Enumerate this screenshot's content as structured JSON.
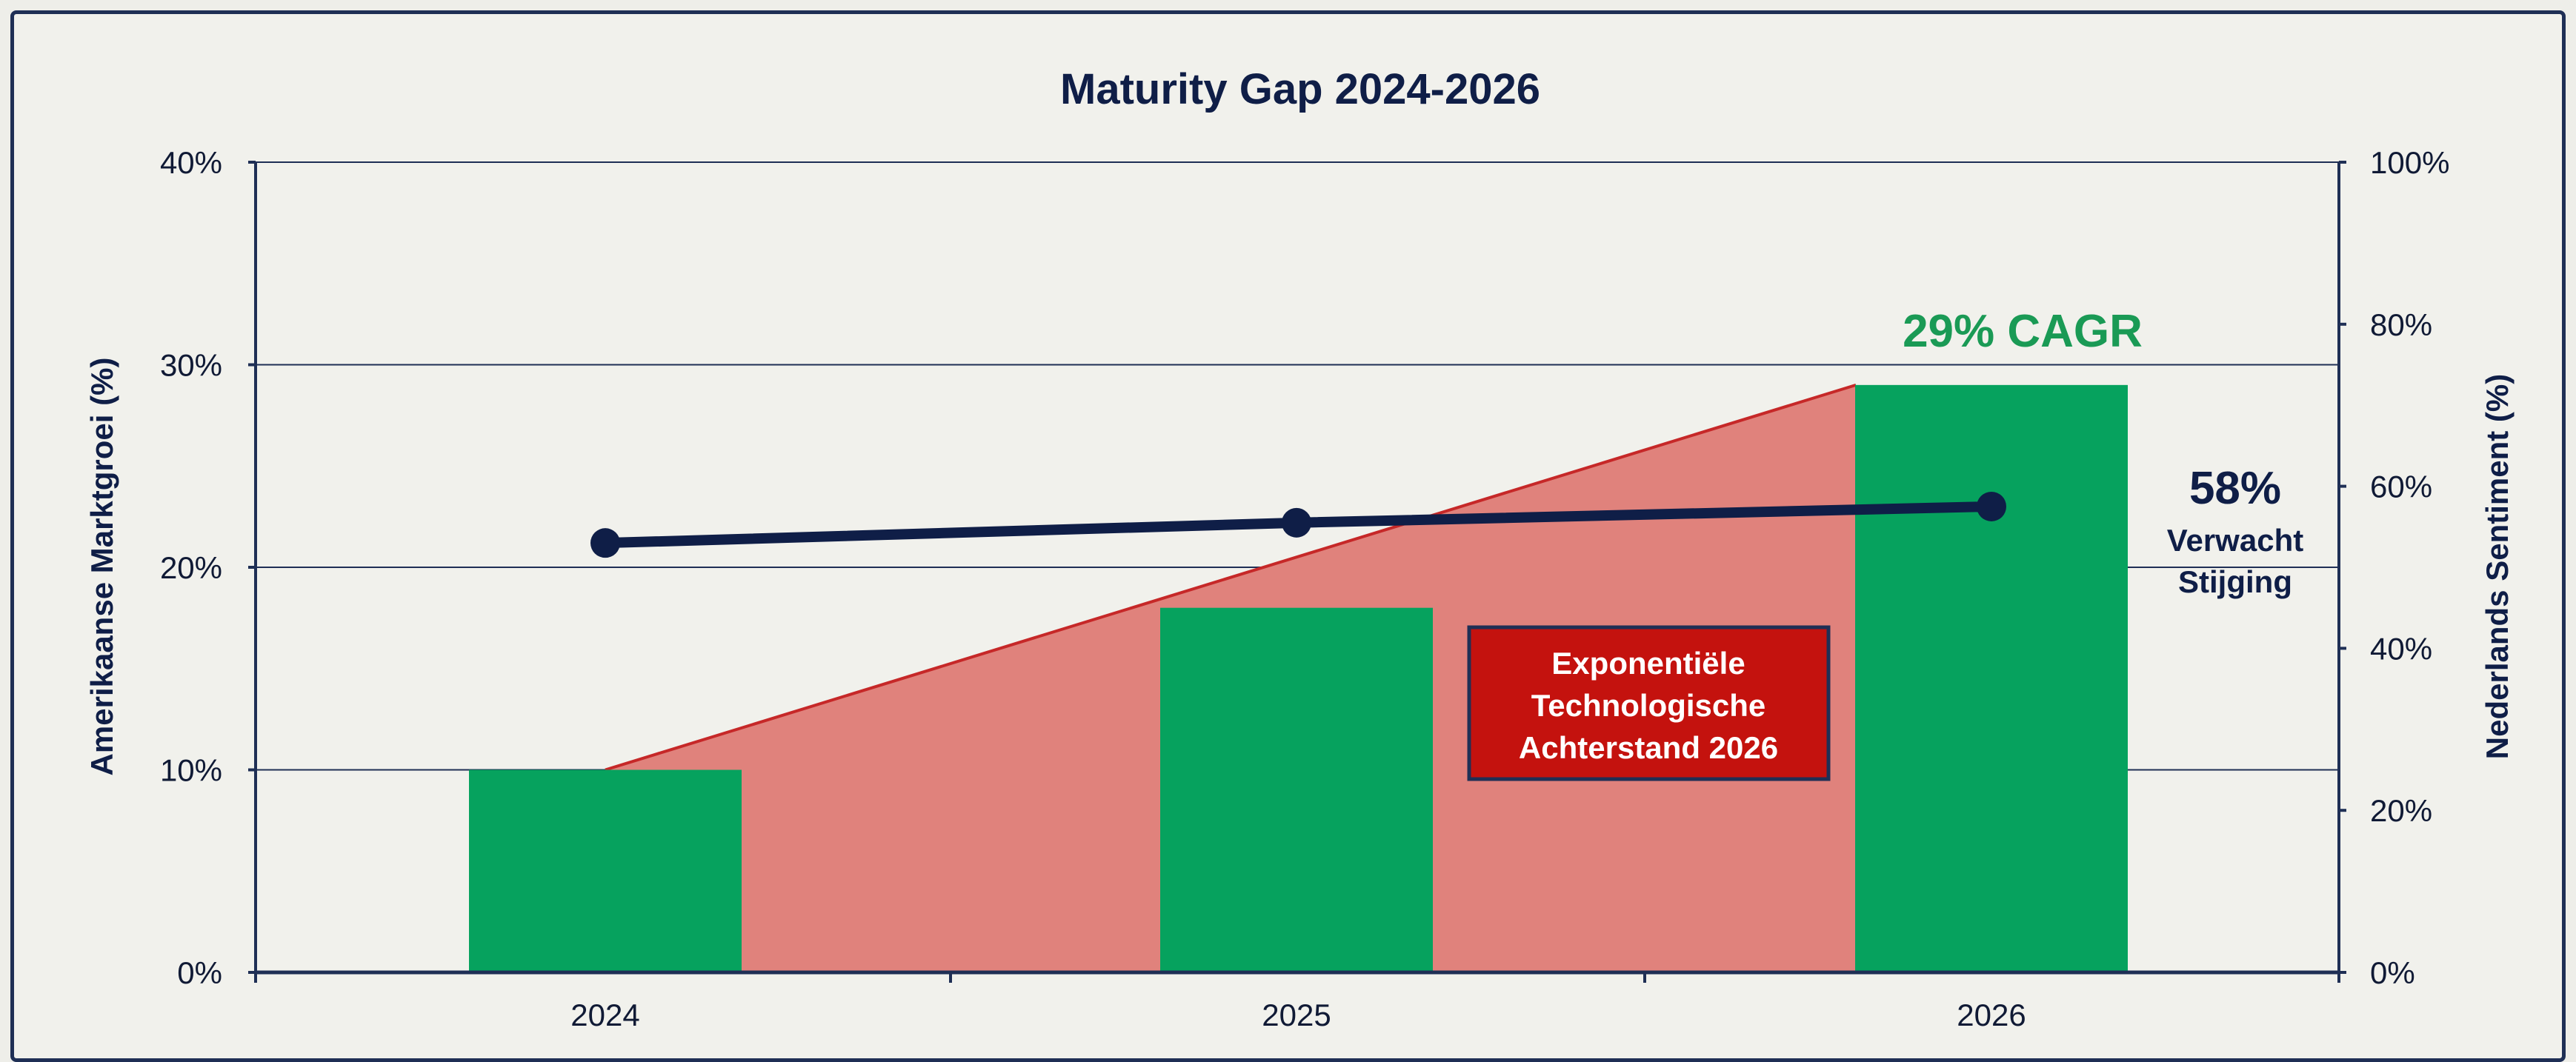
{
  "chart_data": {
    "type": "bar",
    "title": "Maturity Gap 2024-2026",
    "categories": [
      "2024",
      "2025",
      "2026"
    ],
    "series": [
      {
        "name": "",
        "axis": "left",
        "type": "bar",
        "values": [
          10,
          18,
          29
        ]
      },
      {
        "name": "",
        "axis": "right",
        "type": "line",
        "values": [
          53,
          55.5,
          57.5
        ]
      }
    ],
    "area": {
      "type": "area",
      "axis": "left",
      "x": [
        "2024",
        "2026"
      ],
      "values": [
        10,
        29
      ]
    },
    "ylabel_left": "Amerikaanse Marktgroei (%)",
    "ylabel_right": "Nederlands Sentiment (%)",
    "ylim_left": [
      0,
      40
    ],
    "ylim_right": [
      0,
      100
    ],
    "yticks_left": [
      "0%",
      "10%",
      "20%",
      "30%",
      "40%"
    ],
    "yticks_right": [
      "0%",
      "20%",
      "40%",
      "60%",
      "80%",
      "100%"
    ],
    "grid": true,
    "annotations": {
      "cagr": "29% CAGR",
      "sentiment_value": "58%",
      "sentiment_line1": "Verwacht",
      "sentiment_line2": "Stijging",
      "gap_line1": "Exponentiële",
      "gap_line2": "Technologische",
      "gap_line3": "Achterstand 2026"
    },
    "colors": {
      "bars": "#06a25e",
      "area": "#e0827c",
      "area_edge": "#c62828",
      "line": "#0f1e47",
      "box": "#c4120e",
      "axis": "#1f2f55"
    }
  }
}
